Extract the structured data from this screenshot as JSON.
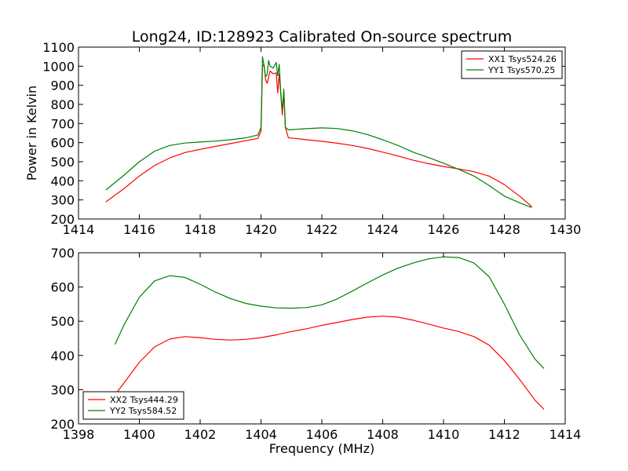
{
  "title": "Long24, ID:128923 Calibrated On-source spectrum",
  "chart_data": [
    {
      "type": "line",
      "panel": "top",
      "xlabel": "",
      "ylabel": "Power in Kelvin",
      "xlim": [
        1414,
        1430
      ],
      "ylim": [
        200,
        1100
      ],
      "xticks": [
        1414,
        1416,
        1418,
        1420,
        1422,
        1424,
        1426,
        1428,
        1430
      ],
      "yticks": [
        200,
        300,
        400,
        500,
        600,
        700,
        800,
        900,
        1000,
        1100
      ],
      "legend_position": "top-right",
      "grid": false,
      "series": [
        {
          "name": "XX1 Tsys524.26",
          "color": "#ff0000",
          "x": [
            1414.9,
            1415.5,
            1416.0,
            1416.5,
            1417.0,
            1417.5,
            1418.0,
            1418.5,
            1419.0,
            1419.5,
            1419.9,
            1420.0,
            1420.05,
            1420.1,
            1420.15,
            1420.2,
            1420.3,
            1420.4,
            1420.5,
            1420.55,
            1420.6,
            1420.65,
            1420.7,
            1420.75,
            1420.8,
            1420.9,
            1421.0,
            1421.5,
            1422.0,
            1422.5,
            1423.0,
            1423.5,
            1424.0,
            1424.5,
            1425.0,
            1425.5,
            1426.0,
            1426.5,
            1427.0,
            1427.5,
            1428.0,
            1428.5,
            1428.9
          ],
          "y": [
            290,
            360,
            425,
            480,
            520,
            548,
            565,
            580,
            595,
            610,
            622,
            660,
            1000,
            1010,
            930,
            910,
            975,
            960,
            965,
            860,
            960,
            850,
            745,
            860,
            680,
            625,
            624,
            615,
            607,
            597,
            585,
            570,
            550,
            530,
            508,
            490,
            475,
            462,
            448,
            425,
            380,
            320,
            265
          ]
        },
        {
          "name": "YY1 Tsys570.25",
          "color": "#008000",
          "x": [
            1414.9,
            1415.5,
            1416.0,
            1416.5,
            1417.0,
            1417.5,
            1418.0,
            1418.5,
            1419.0,
            1419.5,
            1419.9,
            1420.0,
            1420.05,
            1420.1,
            1420.15,
            1420.2,
            1420.25,
            1420.3,
            1420.4,
            1420.5,
            1420.55,
            1420.6,
            1420.65,
            1420.7,
            1420.75,
            1420.8,
            1420.9,
            1421.0,
            1421.5,
            1422.0,
            1422.5,
            1423.0,
            1423.5,
            1424.0,
            1424.5,
            1425.0,
            1425.5,
            1426.0,
            1426.5,
            1427.0,
            1427.5,
            1428.0,
            1428.5,
            1428.9
          ],
          "y": [
            352,
            430,
            500,
            555,
            585,
            598,
            603,
            608,
            615,
            625,
            640,
            680,
            1050,
            1000,
            945,
            955,
            1030,
            1000,
            990,
            1020,
            950,
            1010,
            860,
            770,
            880,
            680,
            667,
            668,
            673,
            677,
            674,
            662,
            642,
            615,
            585,
            550,
            522,
            492,
            460,
            425,
            375,
            320,
            285,
            260
          ]
        }
      ]
    },
    {
      "type": "line",
      "panel": "bottom",
      "xlabel": "Frequency (MHz)",
      "ylabel": "",
      "xlim": [
        1398,
        1414
      ],
      "ylim": [
        200,
        700
      ],
      "xticks": [
        1398,
        1400,
        1402,
        1404,
        1406,
        1408,
        1410,
        1412,
        1414
      ],
      "yticks": [
        200,
        300,
        400,
        500,
        600,
        700
      ],
      "legend_position": "bottom-left",
      "grid": false,
      "series": [
        {
          "name": "XX2 Tsys444.29",
          "color": "#ff0000",
          "x": [
            1399.2,
            1399.5,
            1400.0,
            1400.5,
            1401.0,
            1401.5,
            1402.0,
            1402.5,
            1403.0,
            1403.5,
            1404.0,
            1404.5,
            1405.0,
            1405.5,
            1406.0,
            1406.5,
            1407.0,
            1407.5,
            1408.0,
            1408.5,
            1409.0,
            1409.5,
            1410.0,
            1410.5,
            1411.0,
            1411.5,
            1412.0,
            1412.5,
            1413.0,
            1413.3
          ],
          "y": [
            285,
            320,
            380,
            425,
            448,
            455,
            452,
            447,
            445,
            447,
            452,
            460,
            470,
            478,
            488,
            496,
            505,
            512,
            515,
            512,
            503,
            492,
            480,
            470,
            455,
            430,
            385,
            330,
            270,
            243
          ]
        },
        {
          "name": "YY2 Tsys584.52",
          "color": "#008000",
          "x": [
            1399.2,
            1399.5,
            1400.0,
            1400.5,
            1401.0,
            1401.5,
            1402.0,
            1402.5,
            1403.0,
            1403.5,
            1404.0,
            1404.5,
            1405.0,
            1405.5,
            1406.0,
            1406.5,
            1407.0,
            1407.5,
            1408.0,
            1408.5,
            1409.0,
            1409.5,
            1410.0,
            1410.5,
            1411.0,
            1411.5,
            1412.0,
            1412.5,
            1413.0,
            1413.3
          ],
          "y": [
            432,
            490,
            570,
            618,
            633,
            628,
            608,
            585,
            566,
            552,
            544,
            539,
            538,
            540,
            548,
            565,
            588,
            612,
            635,
            655,
            670,
            682,
            688,
            686,
            670,
            630,
            550,
            460,
            390,
            362
          ]
        }
      ]
    }
  ]
}
